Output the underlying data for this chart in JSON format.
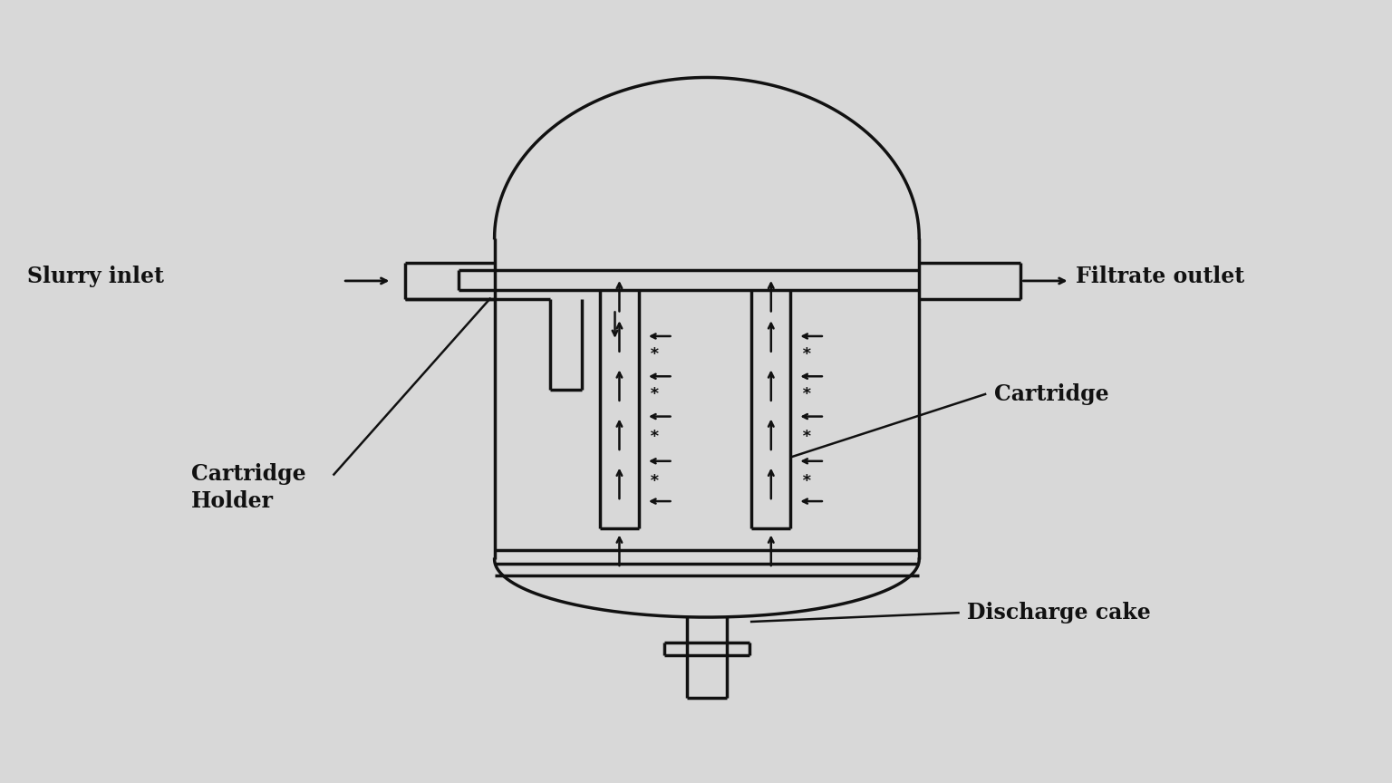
{
  "background_color": "#d8d8d8",
  "line_color": "#111111",
  "lw": 2.5,
  "lw_thin": 1.8,
  "labels": {
    "slurry_inlet": "Slurry inlet",
    "filtrate_outlet": "Filtrate outlet",
    "cartridge": "Cartridge",
    "cartridge_holder": "Cartridge\nHolder",
    "discharge_cake": "Discharge cake"
  },
  "figsize": [
    15.36,
    8.64
  ],
  "dpi": 100
}
